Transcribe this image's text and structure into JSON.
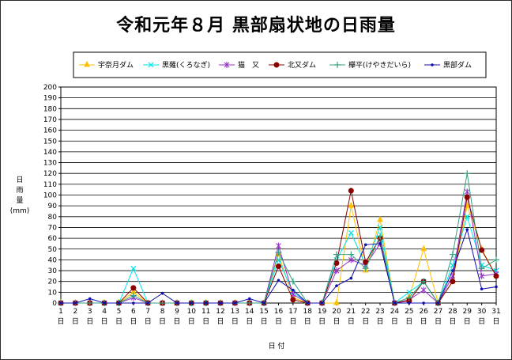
{
  "chart_data": {
    "type": "line",
    "title": "令和元年８月 黒部扇状地の日雨量",
    "ylabel": "日雨量",
    "yunit": "(mm)",
    "xlabel": "日 付",
    "xticks": [
      "1",
      "2",
      "3",
      "4",
      "5",
      "6",
      "7",
      "8",
      "9",
      "10",
      "11",
      "12",
      "13",
      "14",
      "15",
      "16",
      "17",
      "18",
      "19",
      "20",
      "21",
      "22",
      "23",
      "24",
      "25",
      "26",
      "27",
      "28",
      "29",
      "30",
      "31"
    ],
    "xtick_suffix": "日",
    "ylim": [
      0,
      200
    ],
    "ytick_step": 10,
    "grid": true,
    "legend_position": "top",
    "series": [
      {
        "name": "宇奈月ダム",
        "color": "#FFC000",
        "marker": "triangle",
        "values": [
          0,
          0,
          0,
          0,
          0,
          10,
          0,
          0,
          0,
          0,
          0,
          0,
          0,
          0,
          0,
          45,
          5,
          0,
          0,
          0,
          90,
          30,
          77,
          0,
          5,
          50,
          0,
          20,
          90,
          50,
          25
        ]
      },
      {
        "name": "黒薙(くろなぎ)",
        "color": "#00E5EE",
        "marker": "x",
        "values": [
          0,
          0,
          0,
          0,
          0,
          32,
          0,
          0,
          0,
          0,
          0,
          0,
          0,
          0,
          0,
          40,
          10,
          0,
          0,
          40,
          65,
          35,
          70,
          0,
          10,
          20,
          0,
          35,
          80,
          35,
          30
        ]
      },
      {
        "name": "猫　又",
        "color": "#9933CC",
        "marker": "star",
        "values": [
          0,
          0,
          0,
          0,
          0,
          5,
          0,
          0,
          0,
          0,
          0,
          0,
          0,
          0,
          0,
          53,
          8,
          0,
          0,
          30,
          40,
          35,
          55,
          0,
          3,
          12,
          0,
          25,
          103,
          25,
          27
        ]
      },
      {
        "name": "北又ダム",
        "color": "#8B0000",
        "marker": "circle",
        "values": [
          0,
          0,
          0,
          0,
          0,
          14,
          0,
          0,
          0,
          0,
          0,
          0,
          0,
          0,
          0,
          34,
          3,
          0,
          0,
          37,
          104,
          38,
          60,
          0,
          2,
          20,
          0,
          20,
          98,
          49,
          25
        ]
      },
      {
        "name": "欅平(けやきだいら)",
        "color": "#33A080",
        "marker": "plus",
        "values": [
          0,
          0,
          0,
          0,
          0,
          7,
          0,
          0,
          0,
          0,
          0,
          0,
          0,
          0,
          0,
          47,
          20,
          0,
          0,
          45,
          45,
          32,
          62,
          0,
          5,
          20,
          0,
          45,
          120,
          32,
          40
        ]
      },
      {
        "name": "黒部ダム",
        "color": "#1010AA",
        "marker": "dot",
        "values": [
          0,
          0,
          4,
          0,
          0,
          0,
          0,
          9,
          0,
          0,
          0,
          0,
          0,
          4,
          0,
          21,
          12,
          0,
          0,
          16,
          23,
          54,
          55,
          0,
          0,
          0,
          0,
          30,
          68,
          13,
          15
        ]
      }
    ]
  }
}
